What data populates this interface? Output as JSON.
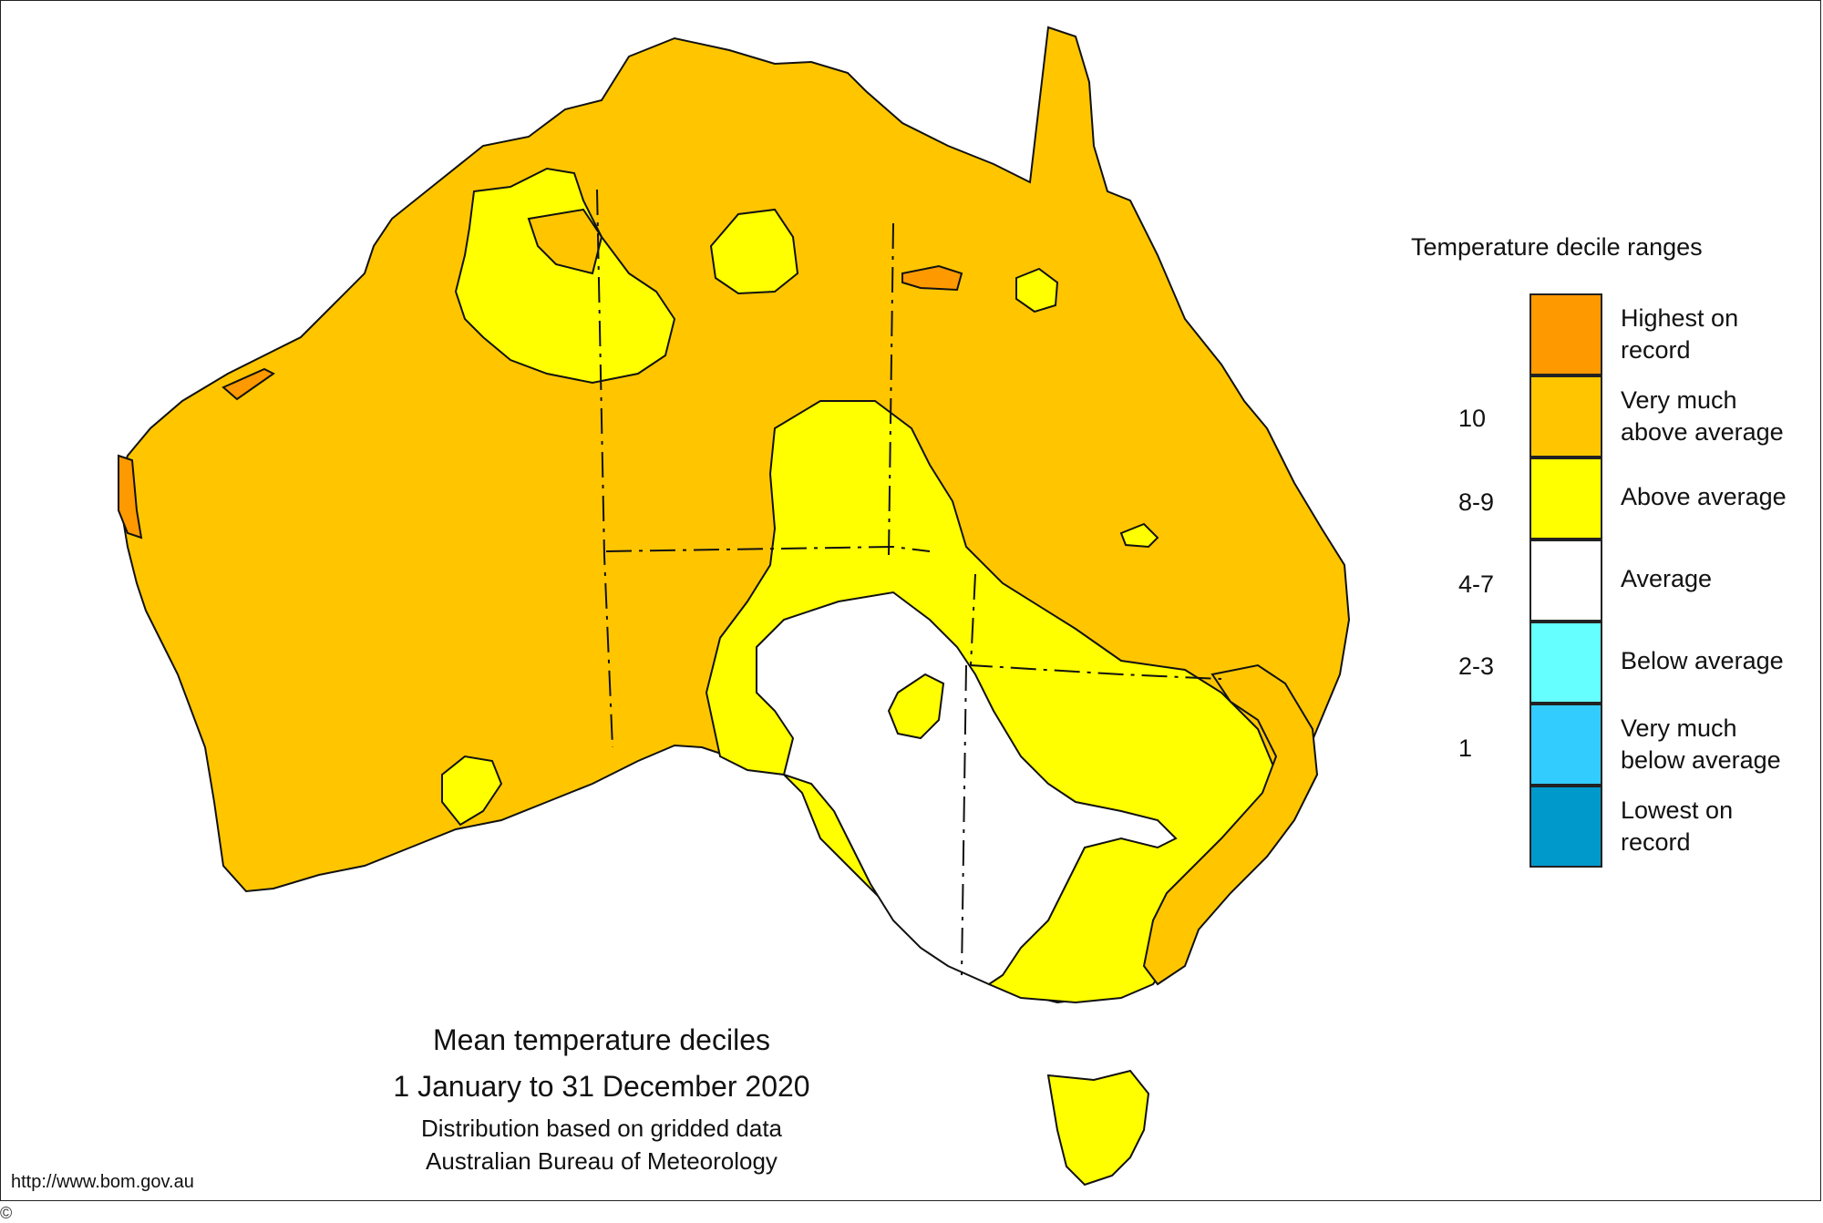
{
  "map": {
    "title": "Mean temperature  deciles",
    "period": "1 January to 31 December 2020",
    "note_line1": "Distribution based on gridded data",
    "note_line2": "Australian Bureau of Meteorology",
    "source_url": "http://www.bom.gov.au",
    "copyright_fragment": "©"
  },
  "legend": {
    "title": "Temperature decile ranges",
    "items": [
      {
        "label_line1": "Highest on",
        "label_line2": "record",
        "color": "#FF9900"
      },
      {
        "label_line1": "Very much",
        "label_line2": "above average",
        "color": "#FFC600"
      },
      {
        "label_line1": "Above average",
        "label_line2": "",
        "color": "#FFFF00"
      },
      {
        "label_line1": "Average",
        "label_line2": "",
        "color": "#FFFFFF"
      },
      {
        "label_line1": "Below average",
        "label_line2": "",
        "color": "#66FFFF"
      },
      {
        "label_line1": "Very much",
        "label_line2": "below average",
        "color": "#33CCFF"
      },
      {
        "label_line1": "Lowest on",
        "label_line2": "record",
        "color": "#0099CC"
      }
    ],
    "decile_labels": [
      "10",
      "8-9",
      "4-7",
      "2-3",
      "1"
    ]
  }
}
